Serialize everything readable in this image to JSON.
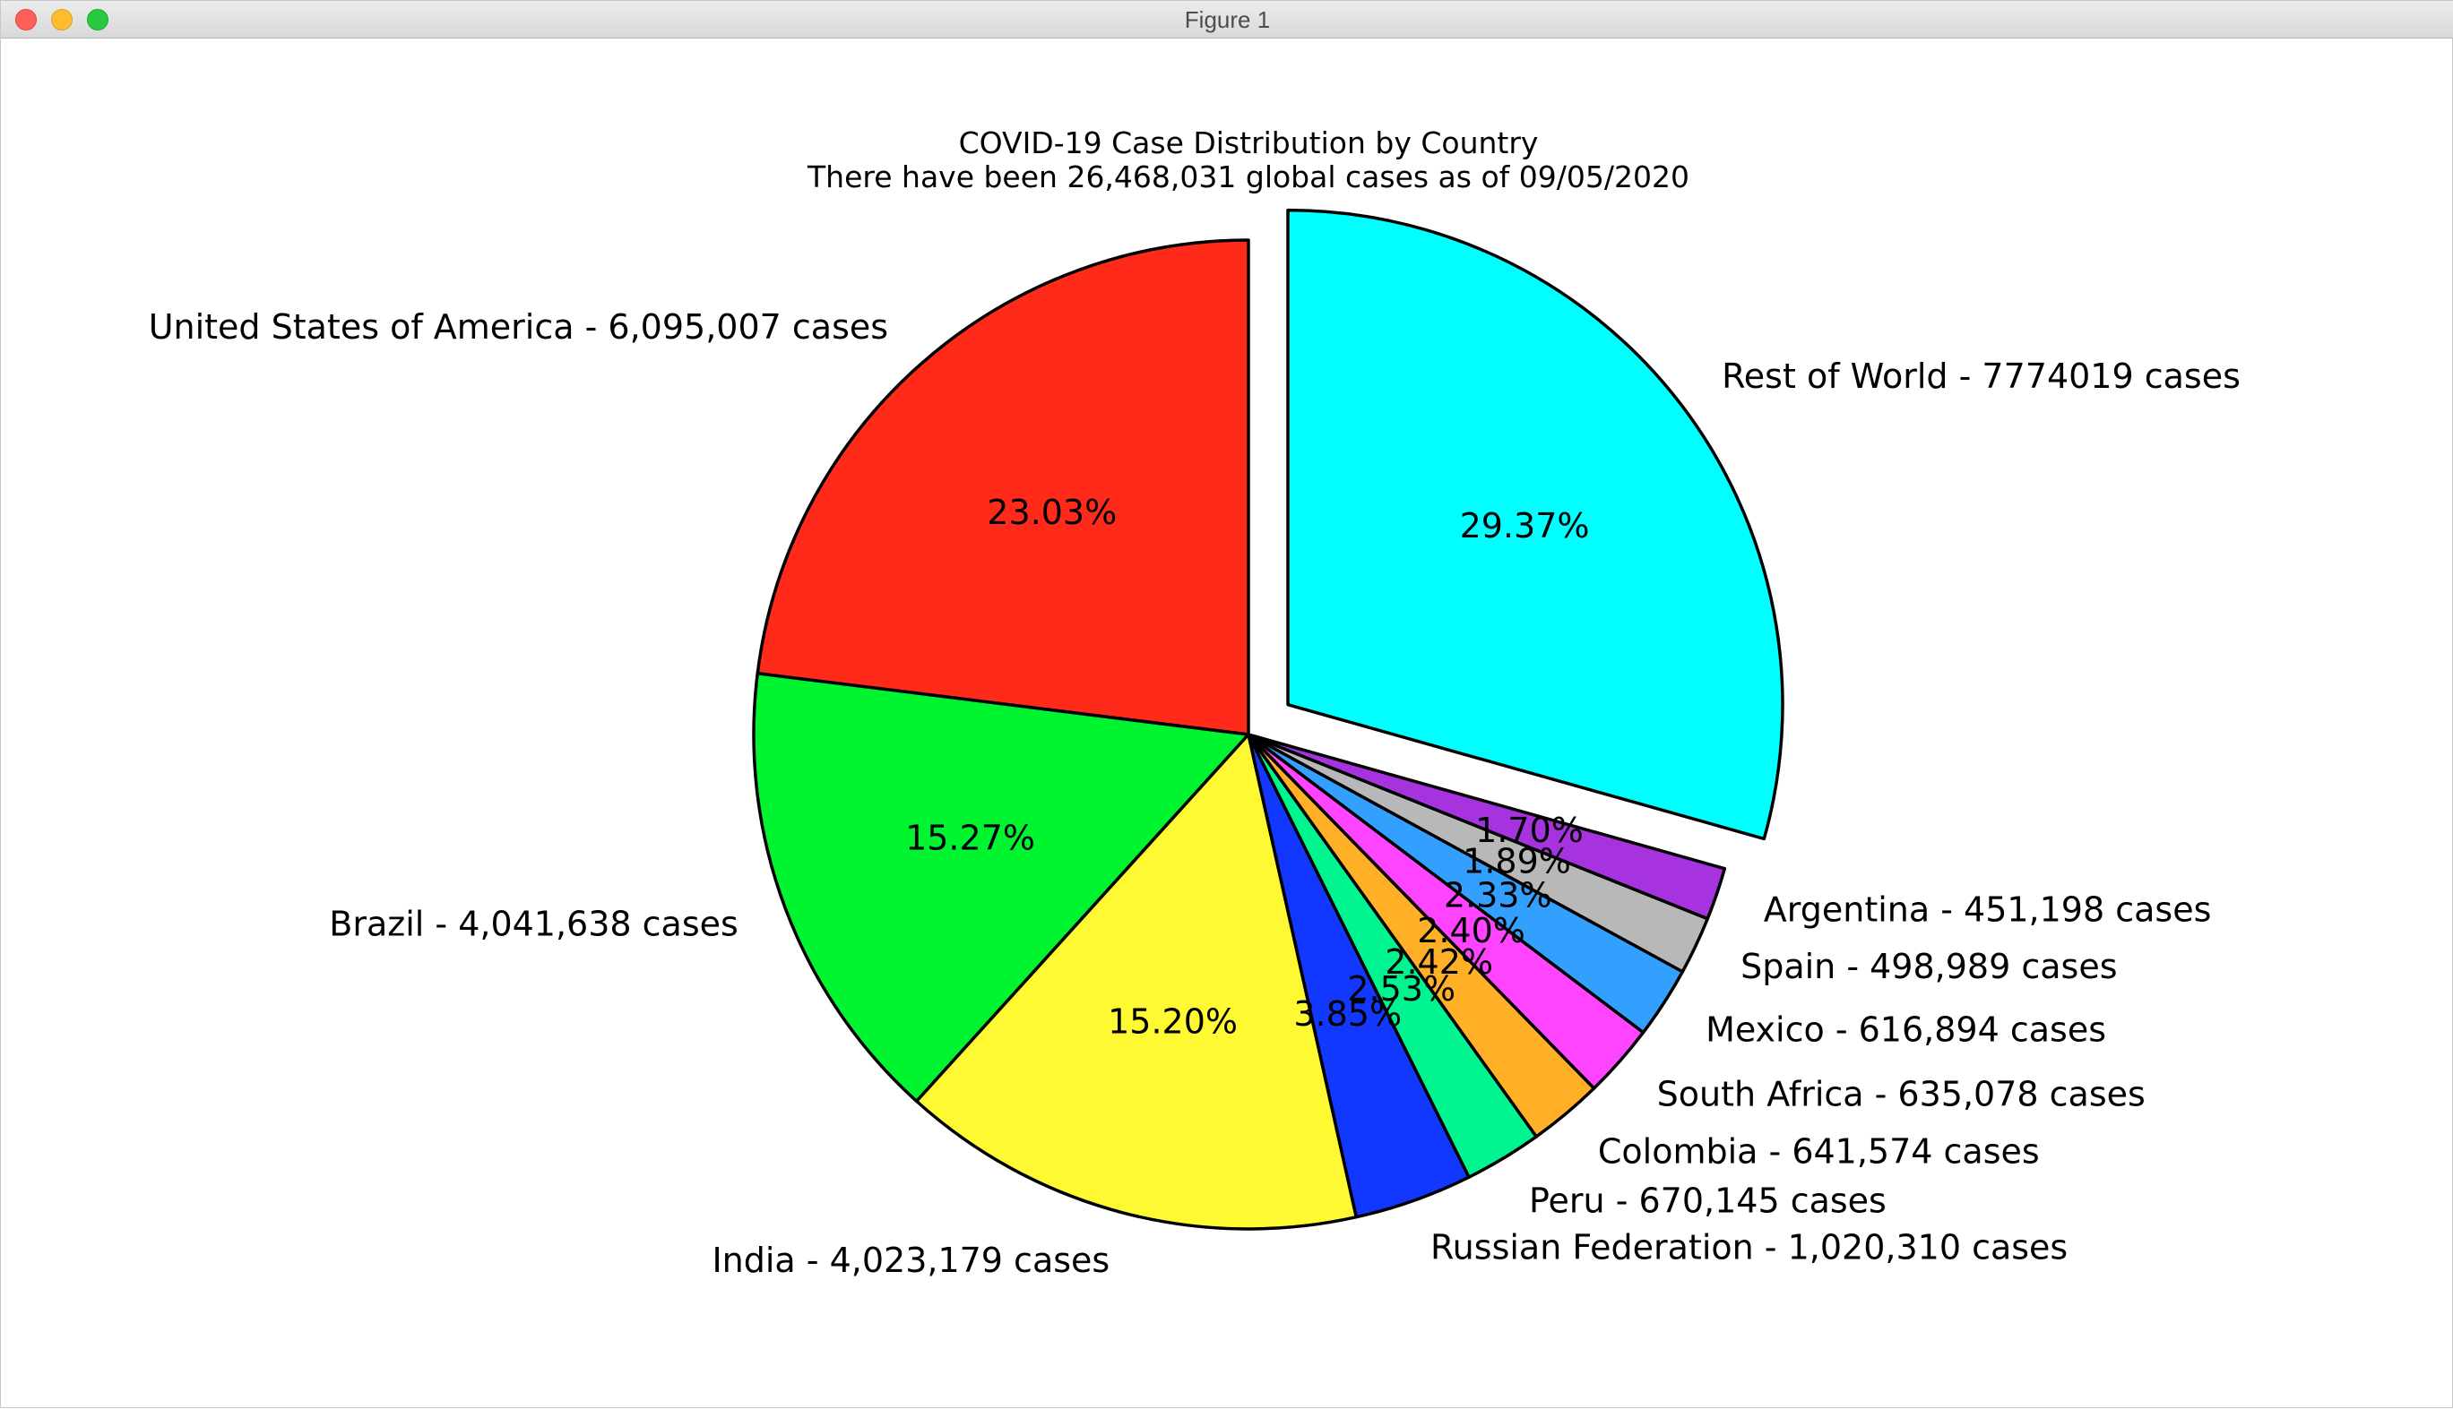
{
  "window": {
    "title": "Figure 1"
  },
  "chart_data": {
    "type": "pie",
    "title": "COVID-19 Case Distribution by Country",
    "subtitle": "There have been 26,468,031 global cases as of 09/05/2020",
    "start_angle_deg": 90,
    "direction": "counterclockwise",
    "slices": [
      {
        "label": "United States of America - 6,095,007 cases",
        "value": 6095007,
        "pct": "23.03%",
        "color": "#ff2a1a",
        "explode": false
      },
      {
        "label": "Brazil - 4,041,638 cases",
        "value": 4041638,
        "pct": "15.27%",
        "color": "#00f530",
        "explode": false
      },
      {
        "label": "India - 4,023,179 cases",
        "value": 4023179,
        "pct": "15.20%",
        "color": "#fff933",
        "explode": false
      },
      {
        "label": "Russian Federation - 1,020,310 cases",
        "value": 1020310,
        "pct": "3.85%",
        "color": "#1238ff",
        "explode": false
      },
      {
        "label": "Peru - 670,145 cases",
        "value": 670145,
        "pct": "2.53%",
        "color": "#00f590",
        "explode": false
      },
      {
        "label": "Colombia - 641,574 cases",
        "value": 641574,
        "pct": "2.42%",
        "color": "#ffb026",
        "explode": false
      },
      {
        "label": "South Africa - 635,078 cases",
        "value": 635078,
        "pct": "2.40%",
        "color": "#ff44ff",
        "explode": false
      },
      {
        "label": "Mexico - 616,894 cases",
        "value": 616894,
        "pct": "2.33%",
        "color": "#33a0ff",
        "explode": false
      },
      {
        "label": "Spain - 498,989 cases",
        "value": 498989,
        "pct": "1.89%",
        "color": "#b8b8b8",
        "explode": false
      },
      {
        "label": "Argentina - 451,198 cases",
        "value": 451198,
        "pct": "1.70%",
        "color": "#a633dd",
        "explode": false
      },
      {
        "label": "Rest of World - 7774019 cases",
        "value": 7774019,
        "pct": "29.37%",
        "color": "#00ffff",
        "explode": true
      }
    ]
  }
}
